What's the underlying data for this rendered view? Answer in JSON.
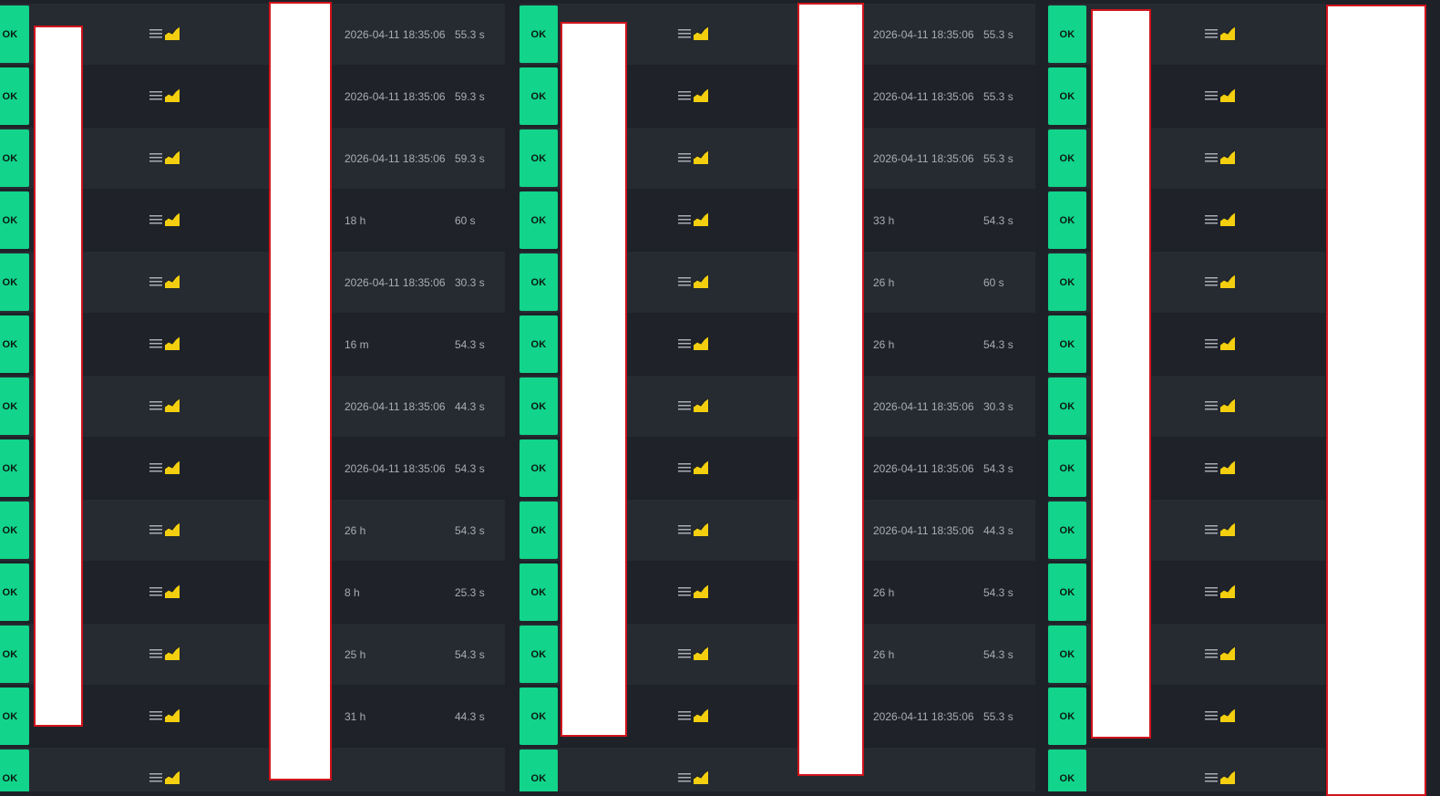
{
  "status_label": "OK",
  "colors": {
    "ok_background": "#12d48a",
    "row_odd": "#262a31",
    "row_even": "#1f2329",
    "highlight_border": "#d0141c",
    "chart_icon": "#f3cf0f"
  },
  "icons": [
    "menu-icon",
    "chart-icon"
  ],
  "columns": [
    {
      "rows": [
        {
          "last": "2026-04-11 18:35:06",
          "duration": "55.3 s"
        },
        {
          "last": "2026-04-11 18:35:06",
          "duration": "59.3 s"
        },
        {
          "last": "2026-04-11 18:35:06",
          "duration": "59.3 s"
        },
        {
          "last": "18 h",
          "duration": "60 s"
        },
        {
          "last": "2026-04-11 18:35:06",
          "duration": "30.3 s"
        },
        {
          "last": "16 m",
          "duration": "54.3 s"
        },
        {
          "last": "2026-04-11 18:35:06",
          "duration": "44.3 s"
        },
        {
          "last": "2026-04-11 18:35:06",
          "duration": "54.3 s"
        },
        {
          "last": "26 h",
          "duration": "54.3 s"
        },
        {
          "last": "8 h",
          "duration": "25.3 s"
        },
        {
          "last": "25 h",
          "duration": "54.3 s"
        },
        {
          "last": "31 h",
          "duration": "44.3 s"
        },
        {
          "last": "",
          "duration": ""
        }
      ]
    },
    {
      "rows": [
        {
          "last": "2026-04-11 18:35:06",
          "duration": "55.3 s"
        },
        {
          "last": "2026-04-11 18:35:06",
          "duration": "55.3 s"
        },
        {
          "last": "2026-04-11 18:35:06",
          "duration": "55.3 s"
        },
        {
          "last": "33 h",
          "duration": "54.3 s"
        },
        {
          "last": "26 h",
          "duration": "60 s"
        },
        {
          "last": "26 h",
          "duration": "54.3 s"
        },
        {
          "last": "2026-04-11 18:35:06",
          "duration": "30.3 s"
        },
        {
          "last": "2026-04-11 18:35:06",
          "duration": "54.3 s"
        },
        {
          "last": "2026-04-11 18:35:06",
          "duration": "44.3 s"
        },
        {
          "last": "26 h",
          "duration": "54.3 s"
        },
        {
          "last": "26 h",
          "duration": "54.3 s"
        },
        {
          "last": "2026-04-11 18:35:06",
          "duration": "55.3 s"
        },
        {
          "last": "",
          "duration": ""
        }
      ]
    },
    {
      "rows": [
        {
          "last": "",
          "duration": ""
        },
        {
          "last": "",
          "duration": ""
        },
        {
          "last": "",
          "duration": ""
        },
        {
          "last": "",
          "duration": ""
        },
        {
          "last": "",
          "duration": ""
        },
        {
          "last": "",
          "duration": ""
        },
        {
          "last": "",
          "duration": ""
        },
        {
          "last": "",
          "duration": ""
        },
        {
          "last": "",
          "duration": ""
        },
        {
          "last": "",
          "duration": ""
        },
        {
          "last": "",
          "duration": ""
        },
        {
          "last": "",
          "duration": ""
        },
        {
          "last": "",
          "duration": ""
        }
      ]
    }
  ]
}
